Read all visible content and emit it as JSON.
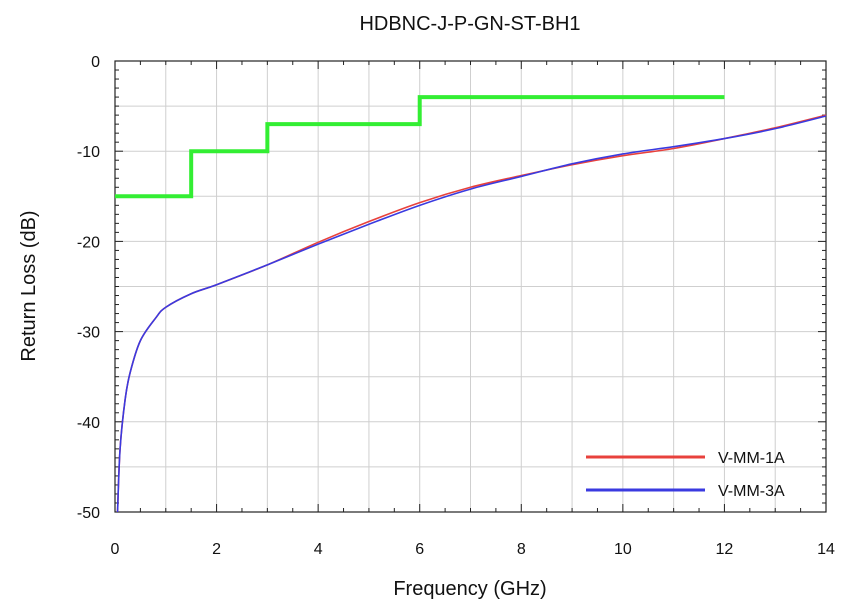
{
  "chart_data": {
    "type": "line",
    "title": "HDBNC-J-P-GN-ST-BH1",
    "xlabel": "Frequency (GHz)",
    "ylabel": "Return Loss (dB)",
    "xlim": [
      0,
      14
    ],
    "ylim": [
      -50,
      0
    ],
    "xticks": [
      0,
      2,
      4,
      6,
      8,
      10,
      12,
      14
    ],
    "yticks": [
      0,
      -10,
      -20,
      -30,
      -40,
      -50
    ],
    "xtick_labels": [
      "0",
      "2",
      "4",
      "6",
      "8",
      "10",
      "12",
      "14"
    ],
    "ytick_labels": [
      "0",
      "-10",
      "-20",
      "-30",
      "-40",
      "-50"
    ],
    "grid": true,
    "legend_position": "bottom-right",
    "series": [
      {
        "name": "V-MM-1A",
        "color": "#e8413c",
        "x": [
          0.05,
          0.1,
          0.2,
          0.3,
          0.5,
          0.8,
          1.0,
          1.5,
          2.0,
          3.0,
          4.0,
          5.0,
          6.0,
          7.0,
          8.0,
          9.0,
          10.0,
          11.0,
          12.0,
          13.0,
          14.0
        ],
        "y": [
          -50,
          -43,
          -37.5,
          -34.5,
          -31,
          -28.5,
          -27.3,
          -25.8,
          -24.8,
          -22.6,
          -20.1,
          -17.8,
          -15.7,
          -14.0,
          -12.7,
          -11.5,
          -10.5,
          -9.7,
          -8.6,
          -7.4,
          -6.0
        ]
      },
      {
        "name": "V-MM-3A",
        "color": "#3a3ae0",
        "x": [
          0.05,
          0.1,
          0.2,
          0.3,
          0.5,
          0.8,
          1.0,
          1.5,
          2.0,
          3.0,
          4.0,
          5.0,
          6.0,
          7.0,
          8.0,
          9.0,
          10.0,
          11.0,
          12.0,
          13.0,
          14.0
        ],
        "y": [
          -50,
          -43,
          -37.5,
          -34.5,
          -31,
          -28.5,
          -27.3,
          -25.8,
          -24.8,
          -22.6,
          -20.3,
          -18.1,
          -16.0,
          -14.2,
          -12.8,
          -11.4,
          -10.3,
          -9.5,
          -8.6,
          -7.5,
          -6.1
        ]
      },
      {
        "color": "#33ee33",
        "step": true,
        "x": [
          0,
          1.5,
          1.5,
          3,
          3,
          6,
          6,
          12
        ],
        "y": [
          -15,
          -15,
          -10,
          -10,
          -7,
          -7,
          -4,
          -4
        ]
      }
    ]
  }
}
